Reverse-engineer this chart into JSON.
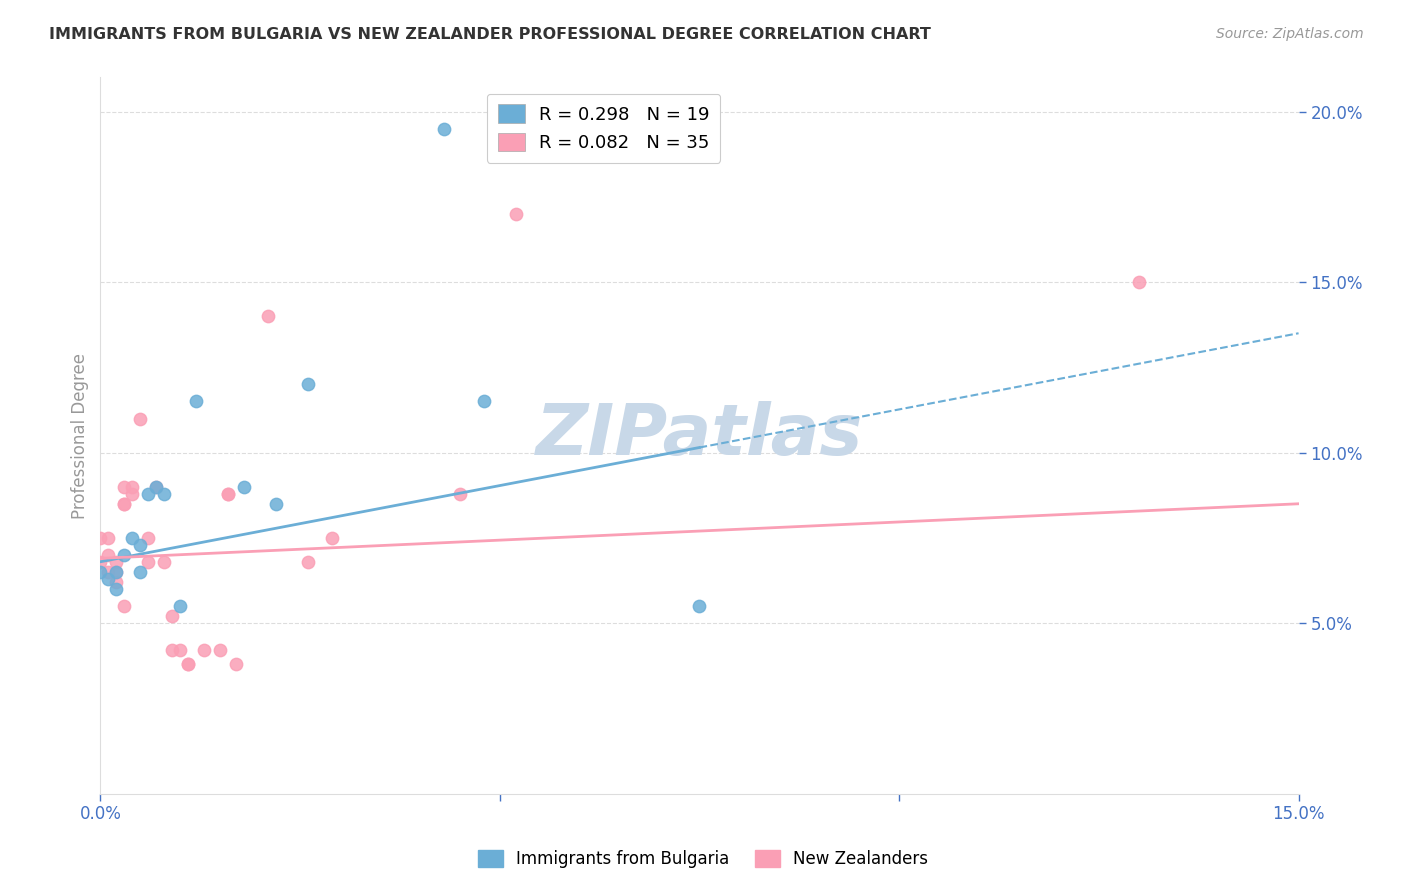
{
  "title": "IMMIGRANTS FROM BULGARIA VS NEW ZEALANDER PROFESSIONAL DEGREE CORRELATION CHART",
  "source": "Source: ZipAtlas.com",
  "ylabel": "Professional Degree",
  "xmin": 0.0,
  "xmax": 0.15,
  "ymin": 0.0,
  "ymax": 0.21,
  "ytick_values": [
    0.05,
    0.1,
    0.15,
    0.2
  ],
  "bulgaria_x": [
    0.0,
    0.001,
    0.002,
    0.002,
    0.003,
    0.004,
    0.005,
    0.005,
    0.006,
    0.007,
    0.008,
    0.01,
    0.012,
    0.018,
    0.022,
    0.026,
    0.043,
    0.048,
    0.075
  ],
  "bulgaria_y": [
    0.065,
    0.063,
    0.065,
    0.06,
    0.07,
    0.075,
    0.073,
    0.065,
    0.088,
    0.09,
    0.088,
    0.055,
    0.115,
    0.09,
    0.085,
    0.12,
    0.195,
    0.115,
    0.055
  ],
  "nz_x": [
    0.0,
    0.0,
    0.001,
    0.001,
    0.001,
    0.002,
    0.002,
    0.002,
    0.003,
    0.003,
    0.003,
    0.003,
    0.004,
    0.004,
    0.005,
    0.006,
    0.006,
    0.007,
    0.008,
    0.009,
    0.009,
    0.01,
    0.011,
    0.011,
    0.013,
    0.015,
    0.016,
    0.016,
    0.017,
    0.021,
    0.026,
    0.029,
    0.045,
    0.052,
    0.13
  ],
  "nz_y": [
    0.068,
    0.075,
    0.065,
    0.07,
    0.075,
    0.068,
    0.065,
    0.062,
    0.085,
    0.085,
    0.09,
    0.055,
    0.088,
    0.09,
    0.11,
    0.068,
    0.075,
    0.09,
    0.068,
    0.052,
    0.042,
    0.042,
    0.038,
    0.038,
    0.042,
    0.042,
    0.088,
    0.088,
    0.038,
    0.14,
    0.068,
    0.075,
    0.088,
    0.17,
    0.15
  ],
  "bulgaria_color": "#6baed6",
  "nz_color": "#fa9fb5",
  "bg_color": "#ffffff",
  "grid_color": "#dddddd",
  "watermark": "ZIPatlas",
  "watermark_color": "#c8d8e8",
  "title_color": "#333333",
  "axis_color": "#999999",
  "marker_size": 80,
  "bulgaria_line_solid_end": 0.075,
  "bulgaria_line_y_at_0": 0.068,
  "bulgaria_line_y_at_15pct": 0.135,
  "nz_line_y_at_0": 0.069,
  "nz_line_y_at_15pct": 0.085
}
